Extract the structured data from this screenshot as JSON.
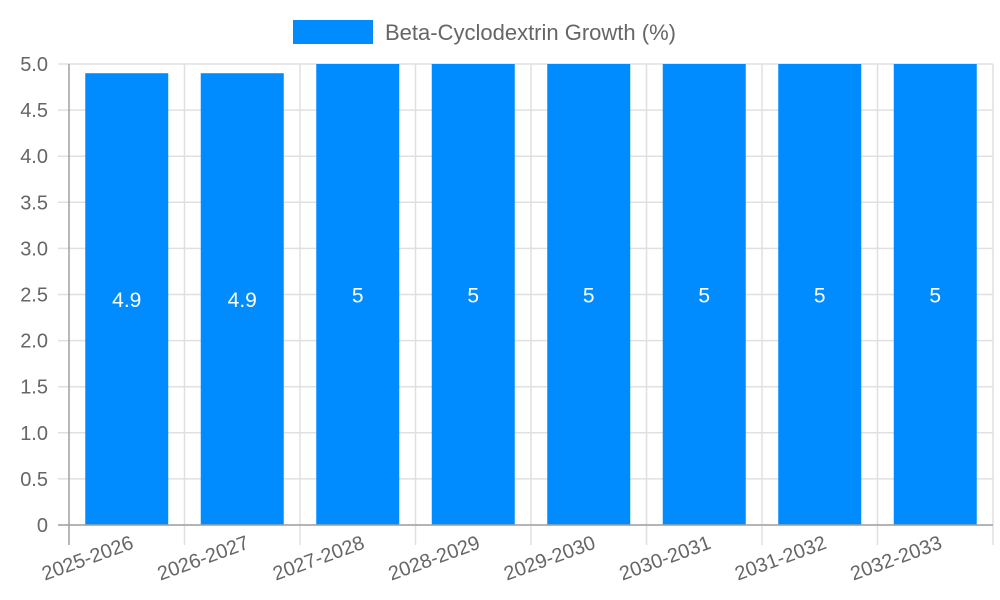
{
  "chart_data": {
    "type": "bar",
    "title": "",
    "categories": [
      "2025-2026",
      "2026-2027",
      "2027-2028",
      "2028-2029",
      "2029-2030",
      "2030-2031",
      "2031-2032",
      "2032-2033"
    ],
    "series": [
      {
        "name": "Beta-Cyclodextrin Growth (%)",
        "values": [
          4.9,
          4.9,
          5,
          5,
          5,
          5,
          5,
          5
        ],
        "color": "#008cff"
      }
    ],
    "data_labels": [
      "4.9",
      "4.9",
      "5",
      "5",
      "5",
      "5",
      "5",
      "5"
    ],
    "xlabel": "",
    "ylabel": "",
    "ylim": [
      0,
      5.0
    ],
    "yticks": [
      "0",
      "0.5",
      "1.0",
      "1.5",
      "2.0",
      "2.5",
      "3.0",
      "3.5",
      "4.0",
      "4.5",
      "5.0"
    ],
    "grid": true,
    "legend_position": "top"
  },
  "legend": {
    "label": "Beta-Cyclodextrin Growth (%)"
  },
  "colors": {
    "bar": "#008cff",
    "grid": "#e0e0e0",
    "axis": "#a0a0a0",
    "text": "#666666"
  }
}
